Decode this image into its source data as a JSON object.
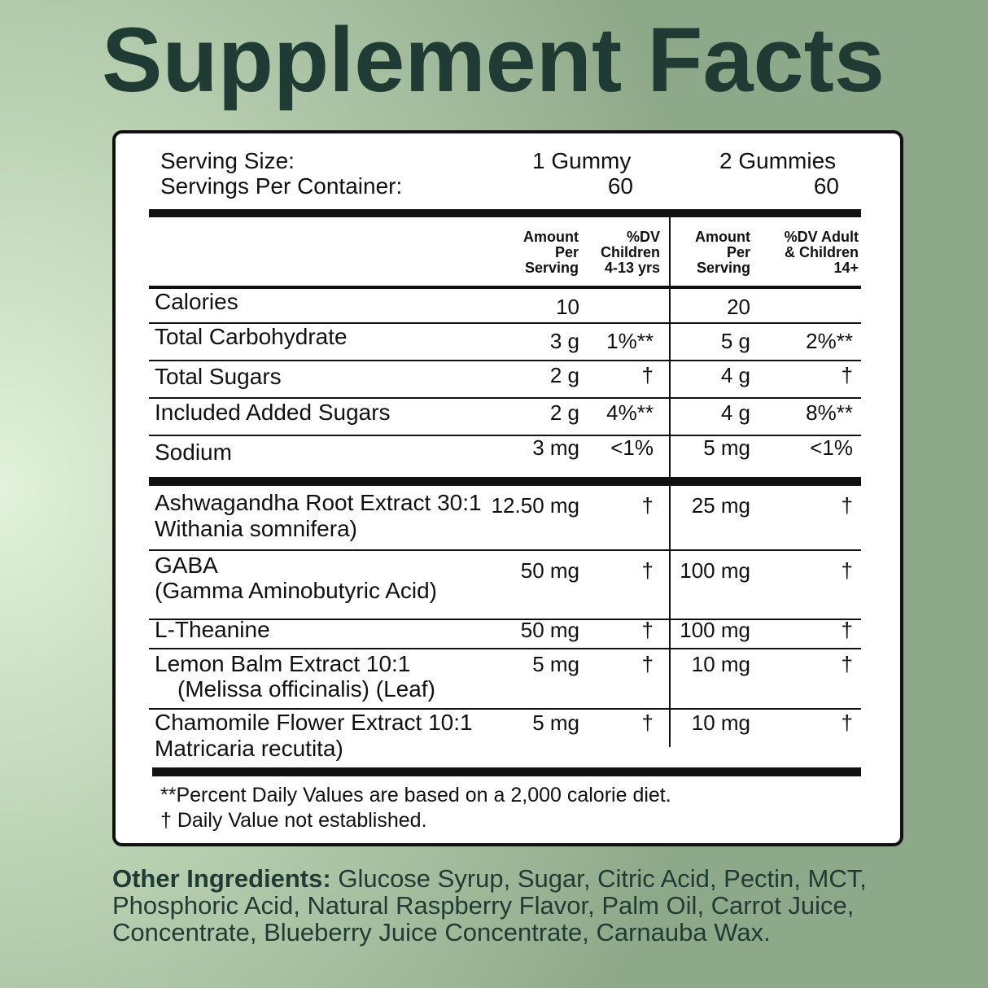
{
  "title": "Supplement Facts",
  "serving": {
    "size_label": "Serving Size:",
    "per_container_label": "Servings Per Container:",
    "columns": [
      {
        "size": "1 Gummy",
        "per_container": "60"
      },
      {
        "size": "2 Gummies",
        "per_container": "60"
      }
    ]
  },
  "table": {
    "headers": [
      [
        "Amount",
        "Per",
        "Serving"
      ],
      [
        "%DV",
        "Children",
        "4-13 yrs"
      ],
      [
        "Amount",
        "Per",
        "Serving"
      ],
      [
        "%DV Adult",
        "& Children",
        "14+"
      ]
    ],
    "rows": [
      {
        "name": [
          "Calories"
        ],
        "cells": [
          "10",
          null,
          "20",
          null
        ]
      },
      {
        "name": [
          "Total Carbohydrate"
        ],
        "cells": [
          "3 g",
          "1%**",
          "5 g",
          "2%**"
        ]
      },
      {
        "name": [
          "Total Sugars"
        ],
        "cells": [
          "2 g",
          "†",
          "4 g",
          "†"
        ]
      },
      {
        "name": [
          "Included Added Sugars"
        ],
        "cells": [
          "2 g",
          "4%**",
          "4 g",
          "8%**"
        ]
      },
      {
        "name": [
          "Sodium"
        ],
        "cells": [
          "3 mg",
          "<1%",
          "5 mg",
          "<1%"
        ]
      },
      {
        "name": [
          "Ashwagandha Root Extract 30:1",
          "Withania somnifera)"
        ],
        "cells": [
          "12.50 mg",
          "†",
          "25 mg",
          "†"
        ]
      },
      {
        "name": [
          "GABA",
          "(Gamma Aminobutyric Acid)"
        ],
        "cells": [
          "50 mg",
          "†",
          "100 mg",
          "†"
        ]
      },
      {
        "name": [
          "L-Theanine"
        ],
        "cells": [
          "50 mg",
          "†",
          "100 mg",
          "†"
        ]
      },
      {
        "name": [
          "Lemon Balm Extract 10:1",
          "(Melissa officinalis) (Leaf)"
        ],
        "cells": [
          "5 mg",
          "†",
          "10 mg",
          "†"
        ]
      },
      {
        "name": [
          "Chamomile Flower Extract 10:1",
          "Matricaria recutita)"
        ],
        "cells": [
          "5 mg",
          "†",
          "10 mg",
          "†"
        ]
      }
    ]
  },
  "footnotes": [
    "**Percent Daily Values are based on a 2,000 calorie diet.",
    "† Daily Value not established."
  ],
  "other_ingredients": {
    "label": "Other Ingredients:",
    "text": "Glucose Syrup, Sugar, Citric Acid, Pectin, MCT, Phosphoric Acid, Natural Raspberry Flavor, Palm Oil, Carrot Juice, Concentrate, Blueberry Juice Concentrate, Carnauba Wax."
  }
}
